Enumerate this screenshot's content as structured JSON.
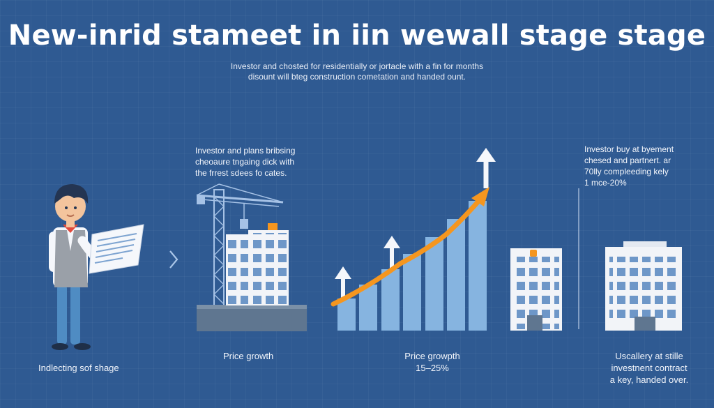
{
  "title": "New-inrid stameet in iin wewall stage stage",
  "subtitle": {
    "line1": "Investor and chosted for residentially or jortacle with a fin for months",
    "line2": "disount will bteg construction cometation and handed ount."
  },
  "stages": [
    {
      "caption": "Indlecting sof shage",
      "icons": [
        "investor-icon",
        "document-icon"
      ]
    },
    {
      "note": [
        "Investor and plans bribsing",
        "cheoaure tngaing dick with",
        "the frrest sdees fo cates."
      ],
      "caption": "Price growth",
      "icons": [
        "crane-icon",
        "building-icon"
      ]
    },
    {
      "caption": [
        "Price growpth",
        "15–25%"
      ],
      "icons": [
        "growth-arrow-icon",
        "up-arrow-icon"
      ]
    },
    {
      "note": [
        "Investor buy at byement",
        "chesed and partnert. ar",
        "70lly compleeding kely",
        "1 mce-20%"
      ],
      "caption": [
        "Uscallery at stille",
        "investnent contract",
        "a key, handed over."
      ],
      "icons": [
        "building-icon",
        "key-icon"
      ]
    }
  ],
  "connector": {
    "symbol": "›"
  },
  "colors": {
    "background": "#2f5a92",
    "bar": "#86b4e0",
    "arrow": "#f5961f",
    "building": "#f2f4f8",
    "window": "#6e97c8"
  }
}
